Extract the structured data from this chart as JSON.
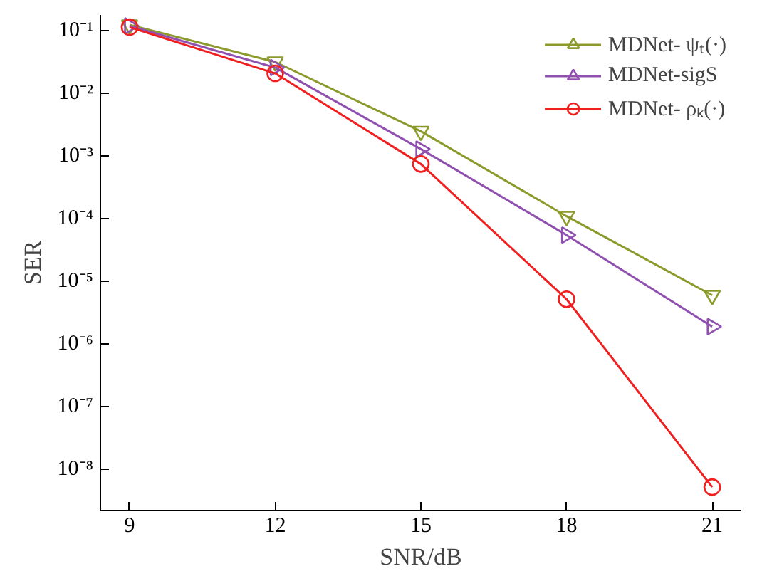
{
  "chart_data": {
    "type": "line",
    "xlabel": "SNR/dB",
    "ylabel": "SER",
    "log": "y",
    "x": [
      9,
      12,
      15,
      18,
      21
    ],
    "xlim": [
      8.4,
      21.6
    ],
    "xticks": [
      9,
      12,
      15,
      18,
      21
    ],
    "ylim": [
      2.2e-09,
      0.18
    ],
    "yticks": [
      {
        "value": 1e-08,
        "label": "10⁻⁸"
      },
      {
        "value": 1e-07,
        "label": "10⁻⁷"
      },
      {
        "value": 1e-06,
        "label": "10⁻⁶"
      },
      {
        "value": 1e-05,
        "label": "10⁻⁵"
      },
      {
        "value": 0.0001,
        "label": "10⁻⁴"
      },
      {
        "value": 0.001,
        "label": "10⁻³"
      },
      {
        "value": 0.01,
        "label": "10⁻²"
      },
      {
        "value": 0.1,
        "label": "10⁻¹"
      }
    ],
    "grid": false,
    "legend": "top right",
    "line_style": "solid",
    "series": [
      {
        "name": "MDNet- ψₜ(·)",
        "color": "#8c9a2c",
        "marker": "triangle",
        "values": [
          0.125,
          0.032,
          0.0025,
          0.00011,
          6e-06
        ]
      },
      {
        "name": "MDNet-sigS",
        "color": "#9050b0",
        "marker": "triangle",
        "values": [
          0.12,
          0.026,
          0.0013,
          5.5e-05,
          1.9e-06
        ]
      },
      {
        "name": "MDNet- ρₖ(·)",
        "color": "#f02020",
        "marker": "circle",
        "values": [
          0.115,
          0.021,
          0.00075,
          5.2e-06,
          5.2e-09
        ]
      }
    ]
  }
}
